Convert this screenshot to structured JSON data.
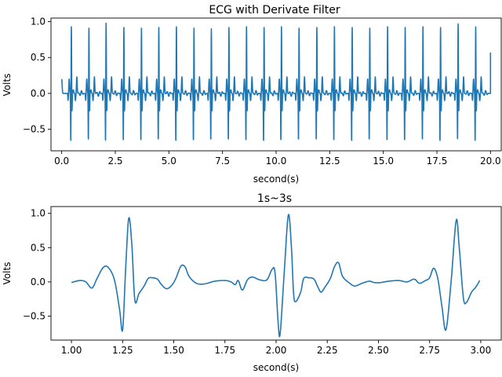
{
  "chart_data": [
    {
      "type": "line",
      "title": "ECG with Derivate Filter",
      "xlabel": "second(s)",
      "ylabel": "Volts",
      "xlim": [
        -0.5,
        20.5
      ],
      "ylim": [
        -0.8,
        1.05
      ],
      "xticks": [
        0.0,
        2.5,
        5.0,
        7.5,
        10.0,
        12.5,
        15.0,
        17.5,
        20.0
      ],
      "xtick_labels": [
        "0.0",
        "2.5",
        "5.0",
        "7.5",
        "10.0",
        "12.5",
        "15.0",
        "17.5",
        "20.0"
      ],
      "yticks": [
        1.0,
        0.5,
        0.0,
        -0.5
      ],
      "ytick_labels": [
        "1.0",
        "0.5",
        "0.0",
        "−0.5"
      ],
      "grid": false,
      "color": "#1f77b4",
      "series": [
        {
          "beat_times": [
            0.45,
            1.27,
            2.07,
            2.9,
            3.72,
            4.53,
            5.35,
            6.17,
            6.98,
            7.8,
            8.62,
            9.44,
            10.25,
            11.07,
            11.9,
            12.72,
            13.55,
            14.37,
            15.2,
            16.02,
            16.85,
            17.67,
            18.49,
            19.31
          ],
          "r_peaks": [
            0.95,
            0.93,
            1.0,
            0.94,
            0.93,
            0.94,
            0.95,
            0.93,
            0.92,
            0.94,
            0.95,
            0.94,
            0.95,
            0.93,
            0.94,
            0.95,
            0.94,
            0.93,
            0.95,
            0.94,
            0.95,
            0.94,
            0.99,
            0.95
          ],
          "s_troughs": [
            -0.73,
            -0.71,
            -0.73,
            -0.72,
            -0.72,
            -0.71,
            -0.73,
            -0.72,
            -0.71,
            -0.71,
            -0.72,
            -0.73,
            -0.72,
            -0.71,
            -0.71,
            -0.72,
            -0.73,
            -0.71,
            -0.72,
            -0.72,
            -0.71,
            -0.73,
            -0.71,
            -0.73
          ],
          "start": {
            "t": 0.0,
            "v": 0.2
          },
          "end": {
            "t": 20.0,
            "v": 0.57
          }
        }
      ]
    },
    {
      "type": "line",
      "title": "1s~3s",
      "xlabel": "second(s)",
      "ylabel": "Volts",
      "xlim": [
        0.9,
        3.1
      ],
      "ylim": [
        -0.85,
        1.1
      ],
      "xticks": [
        1.0,
        1.25,
        1.5,
        1.75,
        2.0,
        2.25,
        2.5,
        2.75,
        3.0
      ],
      "xtick_labels": [
        "1.00",
        "1.25",
        "1.50",
        "1.75",
        "2.00",
        "2.25",
        "2.50",
        "2.75",
        "3.00"
      ],
      "yticks": [
        1.0,
        0.5,
        0.0,
        -0.5
      ],
      "ytick_labels": [
        "1.0",
        "0.5",
        "0.0",
        "−0.5"
      ],
      "grid": false,
      "color": "#1f77b4",
      "series": [
        {
          "points": [
            [
              1.0,
              -0.01
            ],
            [
              1.04,
              0.02
            ],
            [
              1.07,
              0.0
            ],
            [
              1.1,
              -0.09
            ],
            [
              1.125,
              0.05
            ],
            [
              1.155,
              0.21
            ],
            [
              1.18,
              0.21
            ],
            [
              1.21,
              0.03
            ],
            [
              1.235,
              -0.4
            ],
            [
              1.25,
              -0.7
            ],
            [
              1.265,
              0.2
            ],
            [
              1.28,
              0.93
            ],
            [
              1.295,
              0.55
            ],
            [
              1.31,
              -0.27
            ],
            [
              1.33,
              -0.17
            ],
            [
              1.355,
              -0.06
            ],
            [
              1.375,
              0.05
            ],
            [
              1.395,
              0.06
            ],
            [
              1.42,
              0.04
            ],
            [
              1.44,
              -0.04
            ],
            [
              1.465,
              -0.1
            ],
            [
              1.49,
              -0.05
            ],
            [
              1.51,
              0.05
            ],
            [
              1.535,
              0.23
            ],
            [
              1.555,
              0.22
            ],
            [
              1.575,
              0.08
            ],
            [
              1.61,
              -0.02
            ],
            [
              1.65,
              -0.03
            ],
            [
              1.7,
              0.01
            ],
            [
              1.75,
              0.02
            ],
            [
              1.78,
              0.0
            ],
            [
              1.8,
              -0.04
            ],
            [
              1.815,
              0.02
            ],
            [
              1.835,
              -0.12
            ],
            [
              1.86,
              0.03
            ],
            [
              1.885,
              0.07
            ],
            [
              1.92,
              0.03
            ],
            [
              1.955,
              0.03
            ],
            [
              1.98,
              0.18
            ],
            [
              1.995,
              0.13
            ],
            [
              2.01,
              -0.6
            ],
            [
              2.02,
              -0.75
            ],
            [
              2.04,
              0.15
            ],
            [
              2.06,
              0.98
            ],
            [
              2.075,
              0.5
            ],
            [
              2.085,
              -0.15
            ],
            [
              2.095,
              -0.29
            ],
            [
              2.12,
              -0.15
            ],
            [
              2.135,
              0.05
            ],
            [
              2.16,
              0.06
            ],
            [
              2.185,
              0.04
            ],
            [
              2.205,
              -0.08
            ],
            [
              2.22,
              -0.15
            ],
            [
              2.24,
              -0.07
            ],
            [
              2.265,
              0.05
            ],
            [
              2.285,
              0.22
            ],
            [
              2.305,
              0.28
            ],
            [
              2.325,
              0.08
            ],
            [
              2.36,
              -0.02
            ],
            [
              2.385,
              -0.06
            ],
            [
              2.42,
              -0.02
            ],
            [
              2.455,
              0.01
            ],
            [
              2.48,
              -0.01
            ],
            [
              2.51,
              -0.01
            ],
            [
              2.55,
              0.01
            ],
            [
              2.6,
              0.02
            ],
            [
              2.64,
              0.0
            ],
            [
              2.675,
              0.04
            ],
            [
              2.7,
              -0.02
            ],
            [
              2.73,
              0.02
            ],
            [
              2.75,
              0.06
            ],
            [
              2.77,
              0.2
            ],
            [
              2.79,
              0.05
            ],
            [
              2.81,
              -0.35
            ],
            [
              2.83,
              -0.7
            ],
            [
              2.855,
              0.0
            ],
            [
              2.88,
              0.9
            ],
            [
              2.895,
              0.5
            ],
            [
              2.915,
              -0.23
            ],
            [
              2.93,
              -0.3
            ],
            [
              2.955,
              -0.15
            ],
            [
              2.975,
              -0.08
            ],
            [
              2.995,
              0.02
            ]
          ]
        }
      ]
    }
  ]
}
